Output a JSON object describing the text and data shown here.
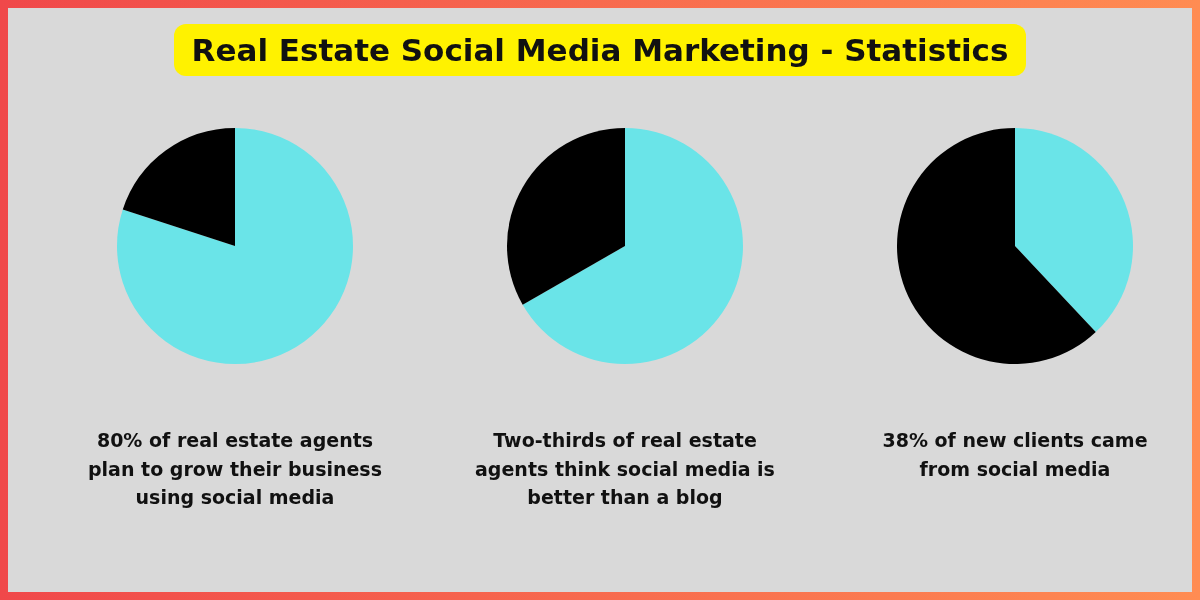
{
  "chart_data": [
    {
      "type": "pie",
      "title": "Real Estate Social Media Marketing - Statistics",
      "categories": [
        null,
        null
      ],
      "values": [
        80,
        20
      ],
      "colors": [
        "#6ae4e8",
        "#000000"
      ],
      "annotations": [
        "80% of real estate agents plan to grow their business using social media"
      ]
    },
    {
      "type": "pie",
      "categories": [
        null,
        null
      ],
      "values": [
        66.7,
        33.3
      ],
      "colors": [
        "#6ae4e8",
        "#000000"
      ],
      "annotations": [
        "Two-thirds of real estate agents think social media is better than a blog"
      ]
    },
    {
      "type": "pie",
      "categories": [
        null,
        null
      ],
      "values": [
        38,
        62
      ],
      "colors": [
        "#6ae4e8",
        "#000000"
      ],
      "annotations": [
        "38% of new clients came from social media"
      ]
    }
  ]
}
